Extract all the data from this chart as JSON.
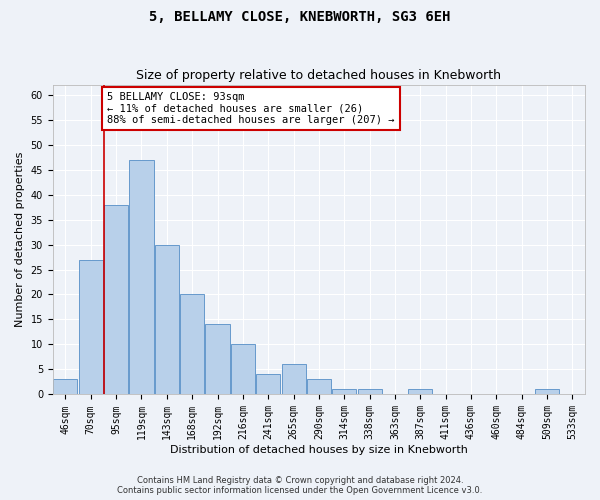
{
  "title_line1": "5, BELLAMY CLOSE, KNEBWORTH, SG3 6EH",
  "title_line2": "Size of property relative to detached houses in Knebworth",
  "xlabel": "Distribution of detached houses by size in Knebworth",
  "ylabel": "Number of detached properties",
  "categories": [
    "46sqm",
    "70sqm",
    "95sqm",
    "119sqm",
    "143sqm",
    "168sqm",
    "192sqm",
    "216sqm",
    "241sqm",
    "265sqm",
    "290sqm",
    "314sqm",
    "338sqm",
    "363sqm",
    "387sqm",
    "411sqm",
    "436sqm",
    "460sqm",
    "484sqm",
    "509sqm",
    "533sqm"
  ],
  "values": [
    3,
    27,
    38,
    47,
    30,
    20,
    14,
    10,
    4,
    6,
    3,
    1,
    1,
    0,
    1,
    0,
    0,
    0,
    0,
    1,
    0
  ],
  "bar_color": "#b8d0ea",
  "bar_edge_color": "#6699cc",
  "annotation_line1": "5 BELLAMY CLOSE: 93sqm",
  "annotation_line2": "← 11% of detached houses are smaller (26)",
  "annotation_line3": "88% of semi-detached houses are larger (207) →",
  "annotation_box_color": "#ffffff",
  "annotation_box_edge_color": "#cc0000",
  "marker_line_color": "#cc0000",
  "ylim": [
    0,
    62
  ],
  "yticks": [
    0,
    5,
    10,
    15,
    20,
    25,
    30,
    35,
    40,
    45,
    50,
    55,
    60
  ],
  "footer_line1": "Contains HM Land Registry data © Crown copyright and database right 2024.",
  "footer_line2": "Contains public sector information licensed under the Open Government Licence v3.0.",
  "background_color": "#eef2f8",
  "title_fontsize": 10,
  "subtitle_fontsize": 9,
  "axis_label_fontsize": 8,
  "tick_fontsize": 7,
  "annotation_fontsize": 7.5,
  "footer_fontsize": 6
}
